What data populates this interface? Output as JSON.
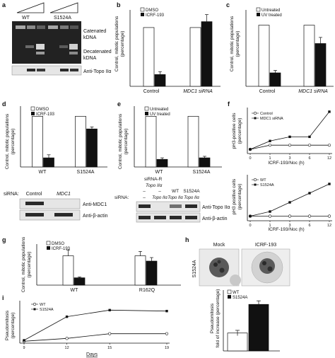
{
  "figure": {
    "panels": {
      "a": {
        "letter": "a",
        "lanes": [
          "WT",
          "S1524A"
        ],
        "labels": [
          "Catenated",
          "kDNA",
          "Decatenated",
          "kDNA"
        ],
        "blot_label": "Anti-Topo IIα"
      },
      "b": {
        "letter": "b",
        "ylabel_line1": "Control, mitotic populations",
        "ylabel_line2": "(percentage)",
        "legend": [
          "DMSO",
          "ICRF-193"
        ],
        "categories": [
          "Control",
          "MDC1 siRNA"
        ]
      },
      "c": {
        "letter": "c",
        "ylabel_line1": "Control, mitotic populations",
        "ylabel_line2": "(percentage)",
        "legend": [
          "Untreated",
          "UV treated"
        ],
        "categories": [
          "Control",
          "MDC1 siRNA"
        ]
      },
      "d": {
        "letter": "d",
        "ylabel_line1": "Control, mitotic populations",
        "ylabel_line2": "(percentage)",
        "legend": [
          "DMSO",
          "ICRF-193"
        ],
        "categories": [
          "WT",
          "S1524A"
        ],
        "blot_prefix": "siRNA:",
        "blot_lanes": [
          "Control",
          "MDC1"
        ],
        "blot_labels": [
          "Anti-MDC1",
          "Anti-β-actin"
        ]
      },
      "e": {
        "letter": "e",
        "ylabel_line1": "Control, mitotic populations",
        "ylabel_line2": "(percentage)",
        "legend": [
          "Untreated",
          "UV treated"
        ],
        "categories": [
          "WT",
          "S1524A"
        ],
        "blot_top_label_line1": "siRNA-R",
        "blot_top_label_line2": "Topo IIα",
        "blot_prefix": "siRNA:",
        "blot_lanes": [
          "–",
          "Topo IIα",
          "Topo IIα",
          "Topo IIα"
        ],
        "blot_top_lanes": [
          "–",
          "–",
          "WT",
          "S1524A"
        ],
        "blot_labels": [
          "Anti-Topo IIα",
          "Anti-β-actin"
        ]
      },
      "f": {
        "letter": "f",
        "top_ylabel_line1": "pH3-positive cells",
        "top_ylabel_line2": "(percentage)",
        "top_legend": [
          "Control",
          "MDC1 siRNA"
        ],
        "bottom_ylabel_line1": "pH3 positive cells",
        "bottom_ylabel_line2": "(percentage)",
        "bottom_legend": [
          "WT",
          "S1524A"
        ],
        "xlabel": "ICRF-193/Noc (h)",
        "xticks": [
          "0",
          "1",
          "3",
          "6",
          "12"
        ]
      },
      "g": {
        "letter": "g",
        "ylabel_line1": "Control, mitotic populations",
        "ylabel_line2": "(percentage)",
        "legend": [
          "DMSO",
          "ICRF-193"
        ],
        "categories": [
          "WT",
          "R162Q"
        ]
      },
      "h": {
        "letter": "h",
        "image_titles": [
          "Mock",
          "ICRF-193"
        ],
        "side_label": "S1524A",
        "ylabel_line1": "Pseudomitosis",
        "ylabel_line2": "fold of increase (percentage)",
        "legend": [
          "WT",
          "S1524A"
        ]
      },
      "i": {
        "letter": "i",
        "ylabel_line1": "Pseudomitosis",
        "ylabel_line2": "(percentage)",
        "legend": [
          "WT",
          "S1524A"
        ],
        "xlabel": "Days",
        "xticks": [
          "9",
          "12",
          "15",
          "19"
        ]
      }
    }
  },
  "chart_data": [
    {
      "id": "b",
      "type": "bar",
      "categories": [
        "Control",
        "MDC1 siRNA"
      ],
      "series": [
        {
          "name": "DMSO",
          "values": [
            100,
            100
          ]
        },
        {
          "name": "ICRF-193",
          "values": [
            20,
            110
          ]
        }
      ],
      "errors": [
        [
          0,
          0
        ],
        [
          5,
          12
        ]
      ],
      "ylim": [
        0,
        130
      ],
      "colors": [
        "#ffffff",
        "#111111"
      ]
    },
    {
      "id": "c",
      "type": "bar",
      "categories": [
        "Control",
        "MDC1 siRNA"
      ],
      "series": [
        {
          "name": "Untreated",
          "values": [
            100,
            100
          ]
        },
        {
          "name": "UV treated",
          "values": [
            22,
            70
          ]
        }
      ],
      "errors": [
        [
          0,
          0
        ],
        [
          4,
          10
        ]
      ],
      "ylim": [
        0,
        125
      ],
      "colors": [
        "#ffffff",
        "#111111"
      ]
    },
    {
      "id": "d",
      "type": "bar",
      "categories": [
        "WT",
        "S1524A"
      ],
      "series": [
        {
          "name": "DMSO",
          "values": [
            100,
            100
          ]
        },
        {
          "name": "ICRF-193",
          "values": [
            18,
            75
          ]
        }
      ],
      "errors": [
        [
          0,
          0
        ],
        [
          6,
          4
        ]
      ],
      "ylim": [
        0,
        120
      ],
      "colors": [
        "#ffffff",
        "#111111"
      ]
    },
    {
      "id": "e",
      "type": "bar",
      "categories": [
        "WT",
        "S1524A"
      ],
      "series": [
        {
          "name": "Untreated",
          "values": [
            100,
            100
          ]
        },
        {
          "name": "UV treated",
          "values": [
            15,
            18
          ]
        }
      ],
      "errors": [
        [
          0,
          0
        ],
        [
          3,
          3
        ]
      ],
      "ylim": [
        0,
        120
      ],
      "colors": [
        "#ffffff",
        "#111111"
      ]
    },
    {
      "id": "f-top",
      "type": "line",
      "x": [
        0,
        1,
        3,
        6,
        12
      ],
      "xticks": [
        "0",
        "1",
        "3",
        "6",
        "12"
      ],
      "series": [
        {
          "name": "Control",
          "values": [
            1,
            2,
            2,
            2,
            2
          ],
          "marker": "open"
        },
        {
          "name": "MDC1 siRNA",
          "values": [
            1,
            3,
            4,
            4,
            10
          ],
          "marker": "filled"
        }
      ],
      "ylim": [
        0,
        11
      ]
    },
    {
      "id": "f-bottom",
      "type": "line",
      "x": [
        0,
        1,
        3,
        6,
        12
      ],
      "xticks": [
        "0",
        "1",
        "3",
        "6",
        "12"
      ],
      "series": [
        {
          "name": "WT",
          "values": [
            1,
            1,
            1,
            1,
            1
          ],
          "marker": "open"
        },
        {
          "name": "S1524A",
          "values": [
            1,
            2,
            4,
            6,
            8
          ],
          "marker": "filled"
        }
      ],
      "ylim": [
        0,
        10
      ]
    },
    {
      "id": "g",
      "type": "bar",
      "categories": [
        "WT",
        "R162Q"
      ],
      "series": [
        {
          "name": "DMSO",
          "values": [
            100,
            100
          ]
        },
        {
          "name": "ICRF-193",
          "values": [
            25,
            82
          ]
        }
      ],
      "errors": [
        [
          20,
          15
        ],
        [
          3,
          12
        ]
      ],
      "ylim": [
        0,
        140
      ],
      "colors": [
        "#ffffff",
        "#111111"
      ]
    },
    {
      "id": "h",
      "type": "bar",
      "categories": [
        "WT",
        "S1524A"
      ],
      "series": [
        {
          "name": "Fold",
          "values": [
            1,
            2.6
          ]
        }
      ],
      "errors": [
        [
          0.15,
          0.2
        ]
      ],
      "ylim": [
        0,
        3.4
      ],
      "colors": [
        "#ffffff",
        "#111111"
      ]
    },
    {
      "id": "i",
      "type": "line",
      "x": [
        9,
        12,
        15,
        19
      ],
      "xticks": [
        "9",
        "12",
        "15",
        "19"
      ],
      "series": [
        {
          "name": "WT",
          "values": [
            2,
            5,
            10,
            10
          ],
          "marker": "open"
        },
        {
          "name": "S1524A",
          "values": [
            3,
            28,
            35,
            34
          ],
          "marker": "filled"
        }
      ],
      "ylim": [
        0,
        45
      ]
    }
  ]
}
